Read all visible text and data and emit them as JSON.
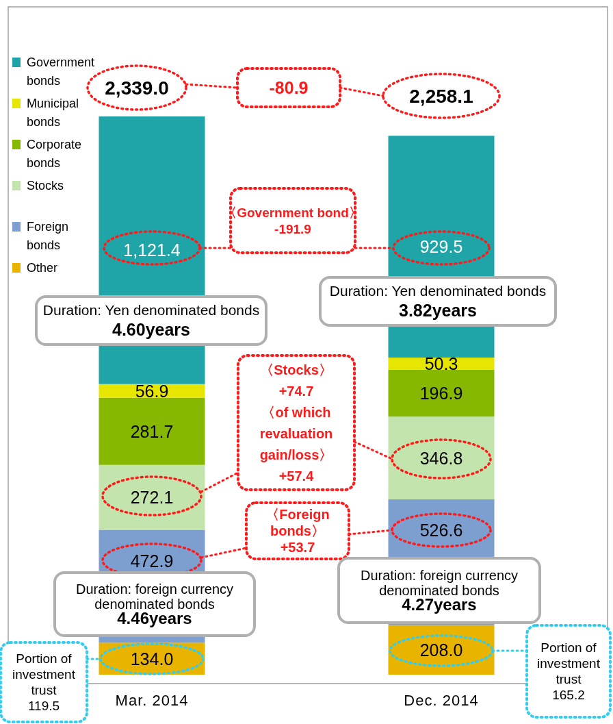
{
  "chart_data": {
    "type": "bar",
    "stacked": true,
    "categories": [
      "Mar. 2014",
      "Dec. 2014"
    ],
    "series": [
      {
        "name": "Other",
        "color": "#e8b400",
        "values": [
          134.0,
          208.0
        ],
        "value_labels": [
          "134.0",
          "208.0"
        ]
      },
      {
        "name": "Foreign bonds",
        "color": "#7d9fd0",
        "values": [
          472.9,
          526.6
        ],
        "value_labels": [
          "472.9",
          "526.6"
        ]
      },
      {
        "name": "Stocks",
        "color": "#c4e4ad",
        "values": [
          272.1,
          346.8
        ],
        "value_labels": [
          "272.1",
          "346.8"
        ]
      },
      {
        "name": "Corporate bonds",
        "color": "#86b800",
        "values": [
          281.7,
          196.9
        ],
        "value_labels": [
          "281.7",
          "196.9"
        ]
      },
      {
        "name": "Municipal bonds",
        "color": "#e6e600",
        "values": [
          56.9,
          50.3
        ],
        "value_labels": [
          "56.9",
          "50.3"
        ]
      },
      {
        "name": "Government bonds",
        "color": "#1fa5a8",
        "values": [
          1121.4,
          929.5
        ],
        "value_labels": [
          "1,121.4",
          "929.5"
        ]
      }
    ],
    "totals": [
      "2,339.0",
      "2,258.1"
    ],
    "legend": "top left",
    "annotations": [
      "-80.9",
      "〈Government bond〉\n-191.9",
      "Duration: Yen denominated bonds\n4.60years",
      "Duration: Yen denominated bonds\n3.82years",
      "〈Stocks〉\n+74.7\n〈of which\nrevaluation\ngain/loss〉\n+57.4",
      "〈Foreign\nbonds〉\n+53.7",
      "Duration: foreign currency\ndenominated bonds\n4.46years",
      "Duration: foreign currency\ndenominated bonds\n4.27years",
      "Portion of\ninvestment\ntrust\n119.5",
      "Portion of\ninvestment\ntrust\n165.2"
    ]
  }
}
